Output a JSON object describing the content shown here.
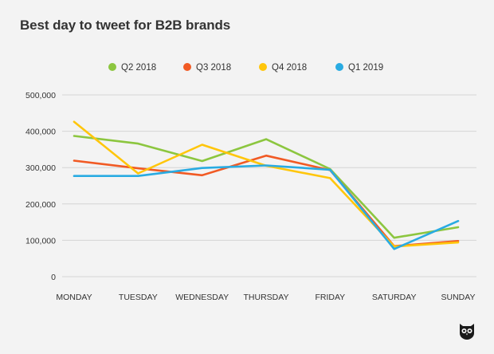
{
  "chart_data": {
    "type": "line",
    "title": "Best day to tweet for B2B brands",
    "xlabel": "",
    "ylabel": "",
    "categories": [
      "MONDAY",
      "TUESDAY",
      "WEDNESDAY",
      "THURSDAY",
      "FRIDAY",
      "SATURDAY",
      "SUNDAY"
    ],
    "ylim": [
      0,
      500000
    ],
    "yticks": [
      0,
      100000,
      200000,
      300000,
      400000,
      500000
    ],
    "ytick_labels": [
      "0",
      "100,000",
      "200,000",
      "300,000",
      "400,000",
      "500,000"
    ],
    "grid": true,
    "legend_position": "top-center",
    "series": [
      {
        "name": "Q2 2018",
        "color": "#8cc63f",
        "values": [
          387000,
          366000,
          318000,
          378000,
          296000,
          107000,
          136000
        ]
      },
      {
        "name": "Q3 2018",
        "color": "#f15a24",
        "values": [
          319000,
          298000,
          279000,
          333000,
          293000,
          84000,
          98000
        ]
      },
      {
        "name": "Q4 2018",
        "color": "#ffc60b",
        "values": [
          426000,
          284000,
          363000,
          305000,
          271000,
          83000,
          94000
        ]
      },
      {
        "name": "Q1 2019",
        "color": "#29abe2",
        "values": [
          277000,
          277000,
          299000,
          306000,
          294000,
          76000,
          153000
        ]
      }
    ]
  }
}
